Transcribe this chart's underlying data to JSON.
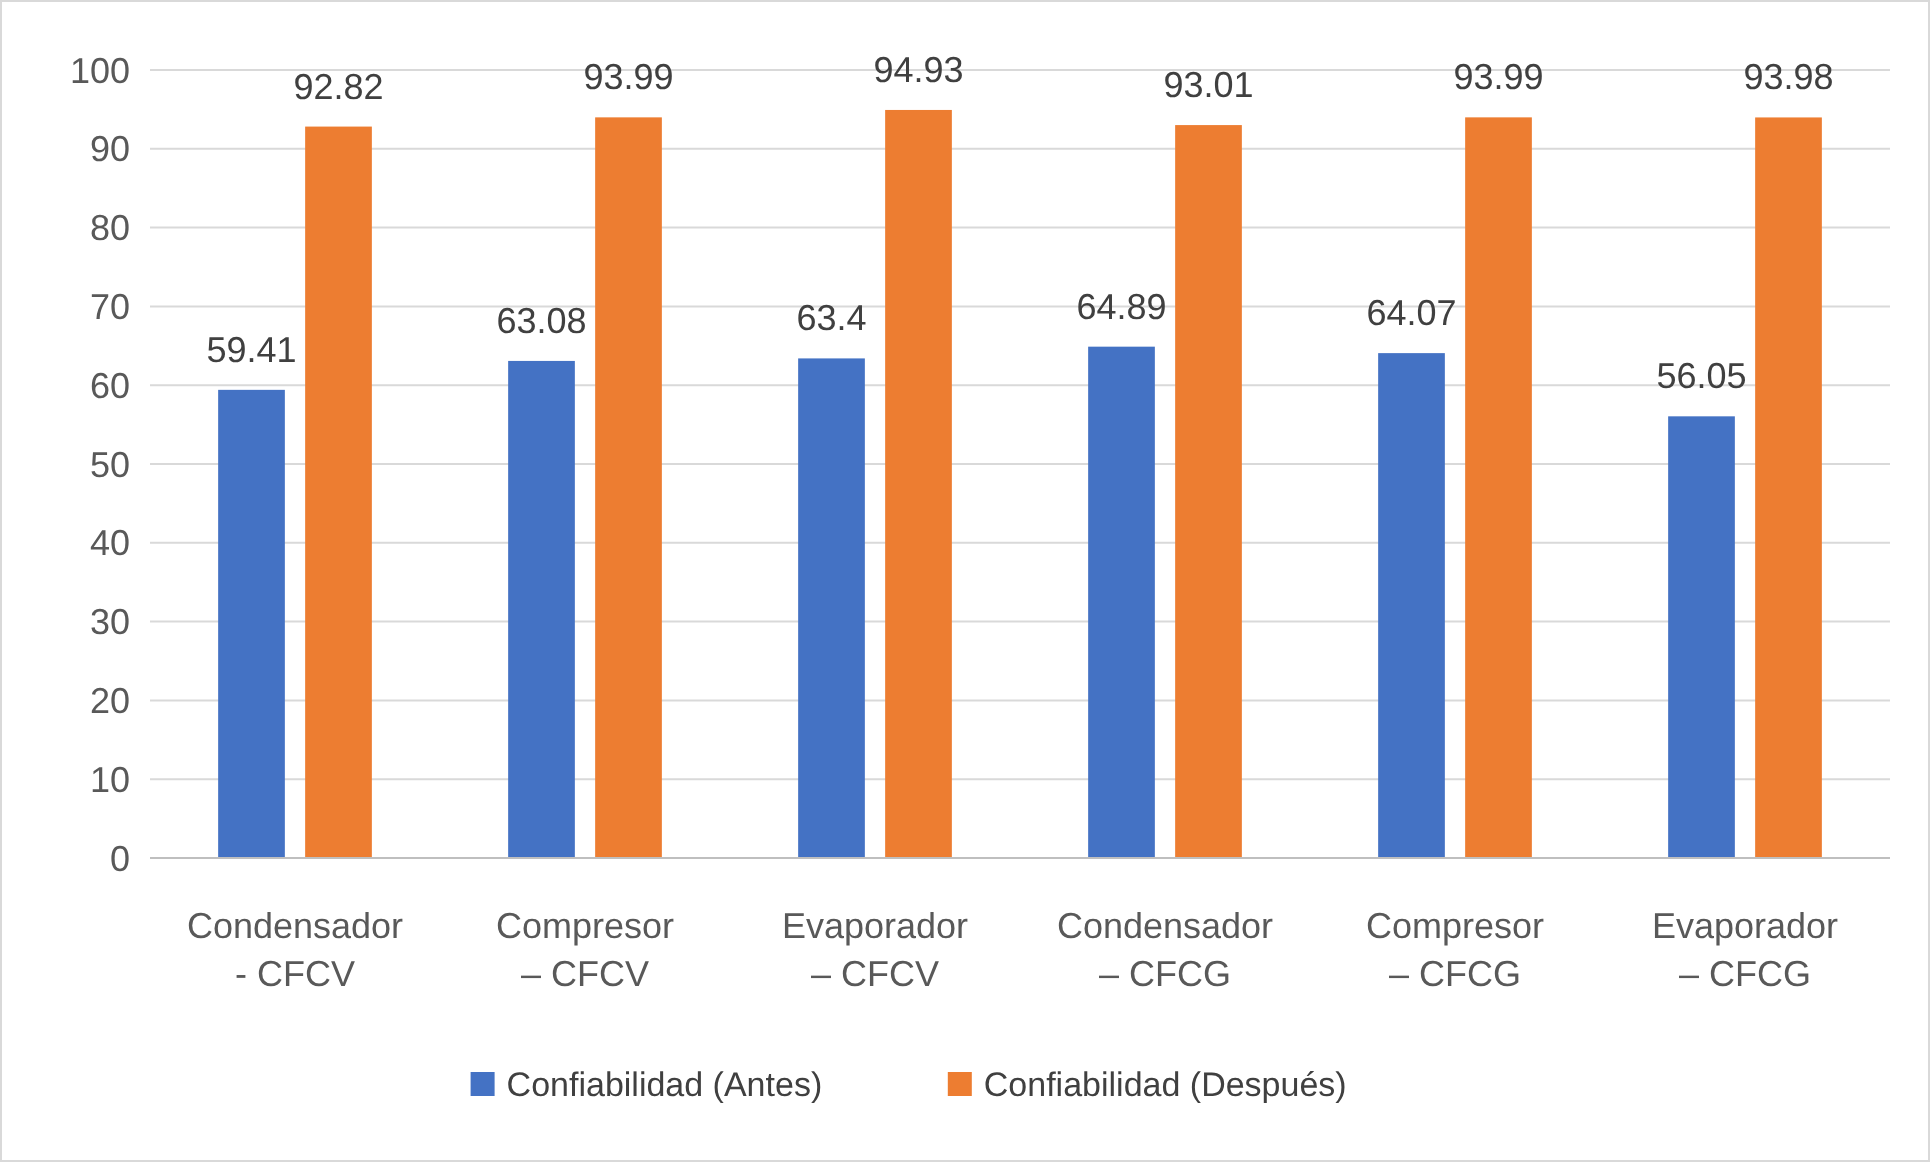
{
  "chart_data": {
    "type": "bar",
    "categories": [
      "Condensador - CFCV",
      "Compresor – CFCV",
      "Evaporador – CFCV",
      "Condensador – CFCG",
      "Compresor – CFCG",
      "Evaporador – CFCG"
    ],
    "series": [
      {
        "name": "Confiabilidad (Antes)",
        "color": "#4472c4",
        "values": [
          59.41,
          63.08,
          63.4,
          64.89,
          64.07,
          56.05
        ]
      },
      {
        "name": "Confiabilidad (Después)",
        "color": "#ed7d31",
        "values": [
          92.82,
          93.99,
          94.93,
          93.01,
          93.99,
          93.98
        ]
      }
    ],
    "ylim": [
      0,
      100
    ],
    "yticks": [
      0,
      10,
      20,
      30,
      40,
      50,
      60,
      70,
      80,
      90,
      100
    ],
    "grid": "y",
    "legend": "bottom",
    "data_labels": true
  }
}
